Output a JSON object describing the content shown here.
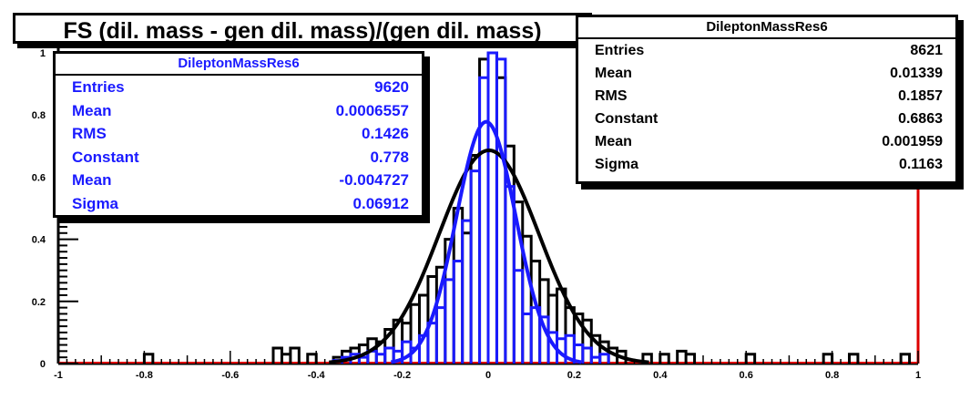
{
  "chart_data": {
    "type": "histogram",
    "title": "FS (dil. mass - gen dil. mass)/(gen dil. mass)",
    "xlim": [
      -1,
      1
    ],
    "ylim": [
      0,
      1
    ],
    "x_ticks": [
      "-1",
      "-0.8",
      "-0.6",
      "-0.4",
      "-0.2",
      "0",
      "0.2",
      "0.4",
      "0.6",
      "0.8",
      "1"
    ],
    "y_ticks": [
      "0",
      "0.2",
      "0.4",
      "0.6",
      "0.8",
      "1"
    ],
    "grid": false,
    "series": [
      {
        "color": "#1a1aff",
        "fit": {
          "constant": 0.778,
          "mean": -0.004727,
          "sigma": 0.06912
        },
        "bins": [
          [
            -0.36,
            0.01
          ],
          [
            -0.34,
            0.02
          ],
          [
            -0.32,
            0.03
          ],
          [
            -0.3,
            0.02
          ],
          [
            -0.28,
            0.04
          ],
          [
            -0.26,
            0.03
          ],
          [
            -0.24,
            0.05
          ],
          [
            -0.22,
            0.04
          ],
          [
            -0.2,
            0.07
          ],
          [
            -0.18,
            0.05
          ],
          [
            -0.16,
            0.09
          ],
          [
            -0.14,
            0.13
          ],
          [
            -0.12,
            0.18
          ],
          [
            -0.1,
            0.27
          ],
          [
            -0.08,
            0.33
          ],
          [
            -0.06,
            0.46
          ],
          [
            -0.04,
            0.62
          ],
          [
            -0.02,
            0.92
          ],
          [
            0.0,
            1.0
          ],
          [
            0.02,
            0.98
          ],
          [
            0.04,
            0.57
          ],
          [
            0.06,
            0.3
          ],
          [
            0.08,
            0.16
          ],
          [
            0.1,
            0.18
          ],
          [
            0.12,
            0.15
          ],
          [
            0.14,
            0.1
          ],
          [
            0.16,
            0.08
          ],
          [
            0.18,
            0.09
          ],
          [
            0.2,
            0.06
          ],
          [
            0.22,
            0.05
          ],
          [
            0.24,
            0.02
          ],
          [
            0.26,
            0.03
          ]
        ]
      },
      {
        "color": "#000000",
        "fit": {
          "constant": 0.6863,
          "mean": 0.001959,
          "sigma": 0.1163
        },
        "bins": [
          [
            -0.8,
            0.03
          ],
          [
            -0.5,
            0.05
          ],
          [
            -0.48,
            0.03
          ],
          [
            -0.46,
            0.05
          ],
          [
            -0.42,
            0.03
          ],
          [
            -0.36,
            0.02
          ],
          [
            -0.34,
            0.04
          ],
          [
            -0.32,
            0.05
          ],
          [
            -0.3,
            0.06
          ],
          [
            -0.28,
            0.08
          ],
          [
            -0.26,
            0.07
          ],
          [
            -0.24,
            0.11
          ],
          [
            -0.22,
            0.14
          ],
          [
            -0.2,
            0.13
          ],
          [
            -0.18,
            0.19
          ],
          [
            -0.16,
            0.22
          ],
          [
            -0.14,
            0.28
          ],
          [
            -0.12,
            0.31
          ],
          [
            -0.1,
            0.4
          ],
          [
            -0.08,
            0.5
          ],
          [
            -0.06,
            0.42
          ],
          [
            -0.04,
            0.67
          ],
          [
            -0.02,
            0.98
          ],
          [
            0.0,
            1.0
          ],
          [
            0.02,
            0.92
          ],
          [
            0.04,
            0.7
          ],
          [
            0.06,
            0.52
          ],
          [
            0.08,
            0.41
          ],
          [
            0.1,
            0.33
          ],
          [
            0.12,
            0.27
          ],
          [
            0.14,
            0.22
          ],
          [
            0.16,
            0.24
          ],
          [
            0.18,
            0.18
          ],
          [
            0.2,
            0.16
          ],
          [
            0.22,
            0.14
          ],
          [
            0.24,
            0.09
          ],
          [
            0.26,
            0.07
          ],
          [
            0.28,
            0.05
          ],
          [
            0.3,
            0.04
          ],
          [
            0.36,
            0.03
          ],
          [
            0.4,
            0.03
          ],
          [
            0.44,
            0.04
          ],
          [
            0.46,
            0.03
          ],
          [
            0.6,
            0.03
          ],
          [
            0.78,
            0.03
          ],
          [
            0.84,
            0.03
          ],
          [
            0.96,
            0.03
          ]
        ]
      }
    ]
  },
  "stats_left": {
    "header": "DileptonMassRes6",
    "rows": [
      {
        "label": "Entries",
        "value": "9620"
      },
      {
        "label": "Mean",
        "value": "0.0006557"
      },
      {
        "label": "RMS",
        "value": "0.1426"
      },
      {
        "label": "Constant",
        "value": "0.778"
      },
      {
        "label": "Mean",
        "value": "-0.004727"
      },
      {
        "label": "Sigma",
        "value": "0.06912"
      }
    ]
  },
  "stats_right": {
    "header": "DileptonMassRes6",
    "rows": [
      {
        "label": "Entries",
        "value": "8621"
      },
      {
        "label": "Mean",
        "value": "0.01339"
      },
      {
        "label": "RMS",
        "value": "0.1857"
      },
      {
        "label": "Constant",
        "value": "0.6863"
      },
      {
        "label": "Mean",
        "value": "0.001959"
      },
      {
        "label": "Sigma",
        "value": "0.1163"
      }
    ]
  }
}
